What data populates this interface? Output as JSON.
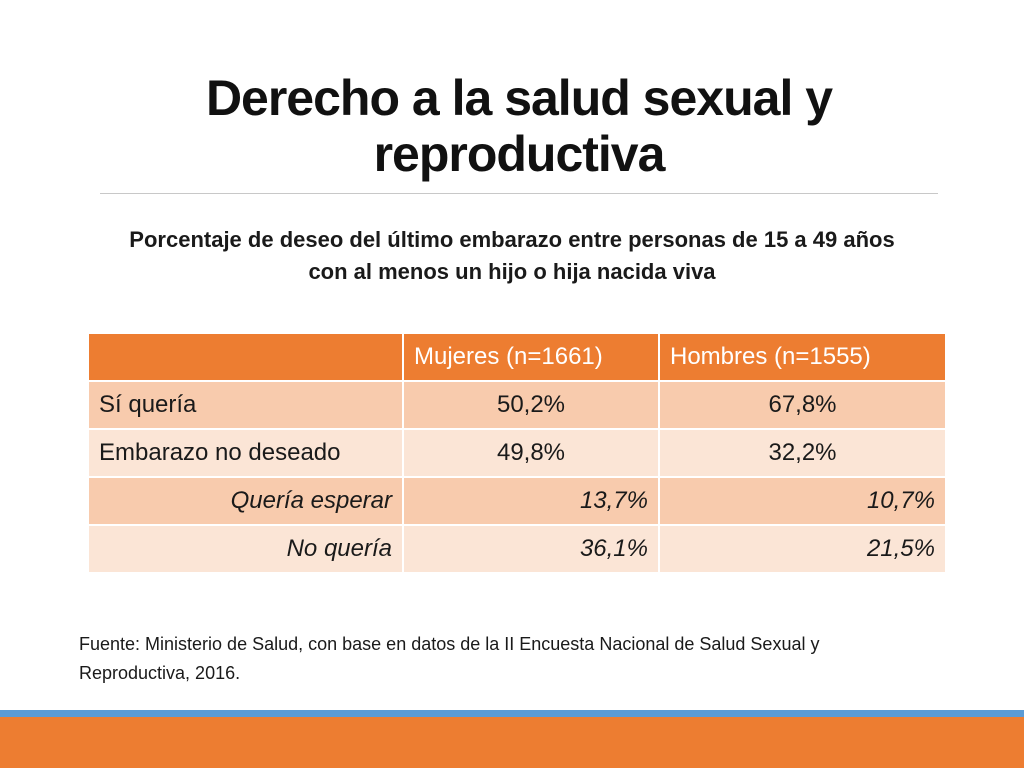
{
  "slide": {
    "title_line1": "Derecho a la salud sexual y",
    "title_line2": "reproductiva",
    "subtitle_line1": "Porcentaje de deseo del último embarazo entre personas de 15 a 49 años",
    "subtitle_line2": "con al menos un hijo o hija nacida viva",
    "source_line1": "Fuente: Ministerio de Salud, con base en datos de la II Encuesta Nacional de Salud Sexual y",
    "source_line2": "Reproductiva, 2016."
  },
  "table": {
    "headers": [
      "",
      "Mujeres (n=1661)",
      "Hombres (n=1555)"
    ],
    "rows": [
      {
        "label": "Sí quería",
        "mujeres": "50,2%",
        "hombres": "67,8%"
      },
      {
        "label": "Embarazo no deseado",
        "mujeres": "49,8%",
        "hombres": "32,2%"
      },
      {
        "label": "Quería esperar",
        "mujeres": "13,7%",
        "hombres": "10,7%"
      },
      {
        "label": "No quería",
        "mujeres": "36,1%",
        "hombres": "21,5%"
      }
    ]
  },
  "colors": {
    "accent_orange": "#ed7d31",
    "accent_blue": "#5b9bd5",
    "row_dark": "#f8cbad",
    "row_light": "#fbe5d6"
  }
}
